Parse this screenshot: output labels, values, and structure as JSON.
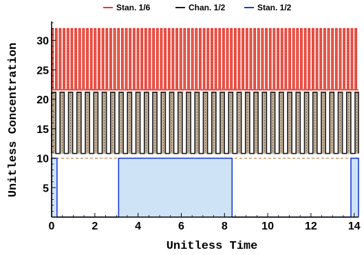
{
  "chart_data": {
    "type": "line",
    "xlabel": "Unitless Time",
    "ylabel": "Unitless Concentration",
    "xlim": [
      0,
      14.2
    ],
    "ylim": [
      0,
      33
    ],
    "x_ticks": [
      0,
      2,
      4,
      6,
      8,
      10,
      12,
      14
    ],
    "y_ticks": [
      5,
      10,
      15,
      20,
      25,
      30
    ],
    "grid": false,
    "legend_position": "top-center",
    "series": [
      {
        "name": "Stan. 1/6",
        "color": "#e8342a",
        "baseline": 21.6,
        "high": 32.0,
        "period": 0.18,
        "duty": 0.4,
        "fill": "#d9c4a8",
        "x_start": 0,
        "x_end": 14.2
      },
      {
        "name": "Chan. 1/2",
        "color": "#1a1a1a",
        "baseline": 10.8,
        "high": 21.2,
        "period": 0.39,
        "duty": 0.5,
        "fill": "#c8b49c",
        "x_start": 0,
        "x_end": 14.2
      },
      {
        "name": "Stan. 1/2",
        "color": "#1a3bd8",
        "baseline": 0,
        "high": 10.0,
        "fill": "#cfe3f7",
        "intervals": [
          [
            0,
            0.25
          ],
          [
            3.1,
            8.35
          ],
          [
            13.85,
            14.2
          ]
        ]
      }
    ],
    "reference_lines": [
      {
        "y": 10.0,
        "color": "#c0702a"
      },
      {
        "y": 21.6,
        "color": "#c0702a"
      }
    ]
  }
}
